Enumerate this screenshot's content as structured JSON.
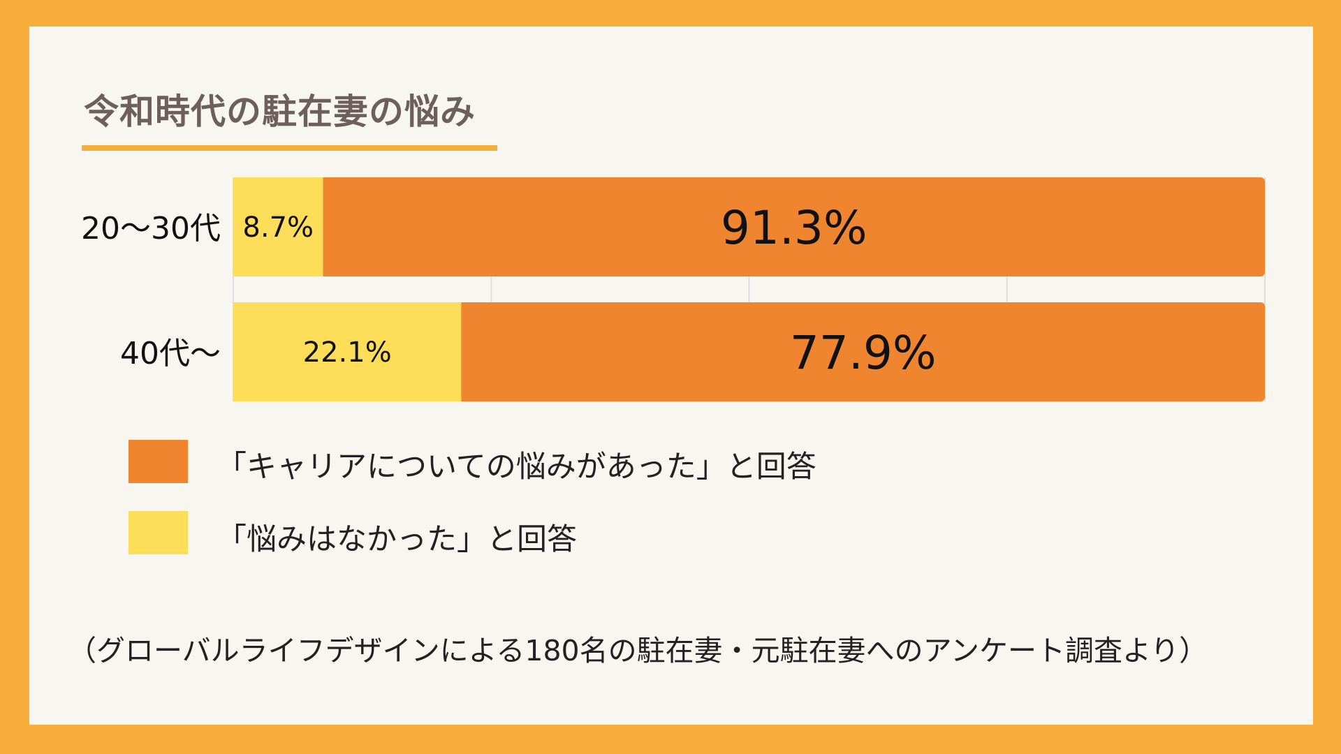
{
  "colors": {
    "frame": "#F9AE3B",
    "card": "#F8F6F0",
    "career": "#EF852E",
    "none": "#FEDD58",
    "title": "#6E5F5E",
    "underline": "#F5AD3C"
  },
  "title": "令和時代の駐在妻の悩み",
  "chart_data": {
    "type": "bar",
    "orientation": "horizontal",
    "stacked": true,
    "categories": [
      "20〜30代",
      "40代〜"
    ],
    "series": [
      {
        "name": "「悩みはなかった」と回答",
        "values": [
          8.7,
          22.1
        ],
        "labels": [
          "8.7%",
          "22.1%"
        ],
        "color": "#FEDD58"
      },
      {
        "name": "「キャリアについての悩みがあった」と回答",
        "values": [
          91.3,
          77.9
        ],
        "labels": [
          "91.3%",
          "77.9%"
        ],
        "color": "#EF852E"
      }
    ],
    "xlim": [
      0,
      100
    ],
    "grid": true
  },
  "legend": {
    "items": [
      {
        "label": "「キャリアについての悩みがあった」と回答",
        "color": "#EF852E"
      },
      {
        "label": "「悩みはなかった」と回答",
        "color": "#FEDD58"
      }
    ]
  },
  "source": "（グローバルライフデザインによる180名の駐在妻・元駐在妻へのアンケート調査より）"
}
